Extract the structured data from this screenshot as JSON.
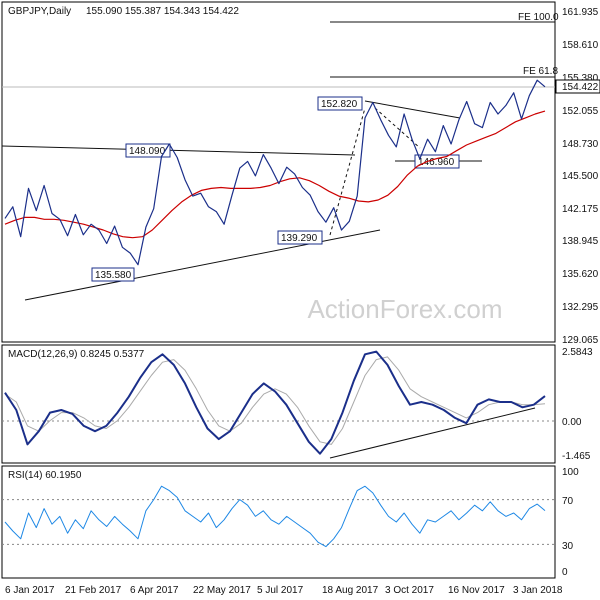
{
  "header": {
    "symbol": "GBPJPY,Daily",
    "ohlc": "155.090 155.387 154.343 154.422"
  },
  "watermark": "ActionForex.com",
  "chart_data": [
    {
      "type": "candlestick",
      "title": "GBPJPY,Daily 155.090 155.387 154.343 154.422",
      "ylim": [
        128.0,
        163.2
      ],
      "y_ticks": [
        "161.935",
        "158.610",
        "155.380",
        "154.422",
        "152.055",
        "148.730",
        "145.500",
        "142.175",
        "138.945",
        "135.620",
        "132.295",
        "129.065"
      ],
      "last_price": 154.422,
      "last_price_label": "154.422",
      "series": [
        {
          "name": "price",
          "color": "#1b2f8a",
          "y": [
            140.8,
            142.0,
            138.9,
            143.9,
            141.6,
            144.2,
            141.3,
            140.7,
            139.0,
            141.2,
            139.1,
            140.2,
            139.6,
            138.2,
            140.0,
            137.8,
            137.2,
            136.0,
            139.9,
            141.8,
            147.2,
            148.5,
            147.1,
            144.8,
            143.1,
            143.4,
            142.0,
            141.5,
            140.2,
            143.2,
            146.0,
            146.7,
            145.2,
            147.4,
            146.0,
            144.4,
            146.1,
            145.4,
            144.0,
            143.2,
            141.5,
            140.4,
            141.9,
            139.6,
            140.5,
            143.1,
            151.2,
            152.8,
            151.0,
            149.4,
            148.2,
            151.6,
            149.0,
            146.96,
            149.0,
            147.7,
            150.4,
            148.5,
            151.0,
            152.9,
            150.6,
            150.2,
            152.8,
            151.6,
            152.5,
            153.8,
            151.1,
            153.5,
            155.1,
            154.422
          ]
        },
        {
          "name": "ma",
          "color": "#cc0000",
          "y": [
            140.2,
            140.6,
            140.9,
            140.9,
            140.7,
            140.7,
            140.6,
            140.4,
            140.2,
            139.9,
            139.6,
            139.2,
            138.9,
            138.8,
            138.9,
            139.6,
            140.6,
            141.6,
            142.5,
            143.2,
            143.7,
            143.9,
            144.0,
            143.9,
            143.9,
            143.9,
            144.0,
            144.2,
            144.6,
            144.9,
            145.0,
            144.7,
            144.2,
            143.6,
            143.1,
            142.9,
            142.6,
            142.5,
            142.7,
            143.2,
            144.1,
            145.3,
            146.2,
            146.7,
            147.0,
            147.2,
            147.8,
            148.4,
            148.8,
            149.2,
            149.6,
            150.2,
            150.8,
            151.2,
            151.6,
            151.9
          ]
        }
      ],
      "annotations": [
        "135.580",
        "148.090",
        "139.290",
        "152.820",
        "146.960",
        "FE 61.8",
        "FE 100.0"
      ],
      "x_tick_labels": [
        "6 Jan 2017",
        "21 Feb 2017",
        "6 Apr 2017",
        "22 May 2017",
        "5 Jul 2017",
        "18 Aug 2017",
        "3 Oct 2017",
        "16 Nov 2017",
        "3 Jan 2018"
      ]
    },
    {
      "type": "line",
      "title": "MACD(12,26,9) 0.8245 0.5377",
      "ylim": [
        -1.7,
        2.75
      ],
      "y_ticks": [
        "2.5843",
        "0.00",
        "-1.465"
      ],
      "series": [
        {
          "name": "MACD",
          "color": "#1b2f8a",
          "y": [
            0.95,
            0.3,
            -1.0,
            -0.5,
            0.2,
            0.3,
            0.15,
            -0.3,
            -0.5,
            -0.3,
            0.2,
            0.8,
            1.5,
            2.1,
            2.4,
            2.0,
            1.3,
            0.4,
            -0.4,
            -0.8,
            -0.5,
            0.2,
            0.9,
            1.3,
            1.0,
            0.5,
            -0.2,
            -0.9,
            -1.35,
            -0.8,
            0.2,
            1.4,
            2.4,
            2.5,
            2.0,
            1.2,
            0.5,
            0.6,
            0.5,
            0.3,
            0.0,
            -0.2,
            0.5,
            0.7,
            0.6,
            0.6,
            0.4,
            0.5,
            0.8245
          ]
        },
        {
          "name": "Signal",
          "color": "#aaaaaa",
          "y": [
            0.9,
            0.6,
            -0.3,
            -0.5,
            -0.1,
            0.2,
            0.2,
            0.0,
            -0.3,
            -0.4,
            -0.1,
            0.4,
            1.0,
            1.6,
            2.1,
            2.2,
            1.8,
            1.1,
            0.3,
            -0.3,
            -0.5,
            -0.2,
            0.4,
            0.9,
            1.1,
            0.9,
            0.4,
            -0.3,
            -0.9,
            -1.0,
            -0.4,
            0.6,
            1.6,
            2.2,
            2.3,
            1.8,
            1.1,
            0.8,
            0.6,
            0.4,
            0.2,
            0.0,
            0.2,
            0.5,
            0.6,
            0.6,
            0.5,
            0.5,
            0.5377
          ]
        }
      ]
    },
    {
      "type": "line",
      "title": "RSI(14) 60.1950",
      "ylim": [
        0,
        100
      ],
      "y_ticks": [
        "100",
        "70",
        "30",
        "0"
      ],
      "levels": [
        70,
        30
      ],
      "series": [
        {
          "name": "RSI",
          "color": "#1e88e5",
          "y": [
            50,
            42,
            35,
            58,
            45,
            62,
            48,
            55,
            40,
            52,
            44,
            60,
            52,
            46,
            55,
            48,
            42,
            35,
            60,
            70,
            82,
            78,
            72,
            60,
            55,
            50,
            58,
            45,
            52,
            62,
            70,
            65,
            55,
            60,
            52,
            48,
            55,
            50,
            45,
            40,
            32,
            28,
            35,
            45,
            62,
            78,
            82,
            76,
            65,
            55,
            50,
            58,
            48,
            40,
            52,
            50,
            55,
            60,
            52,
            58,
            65,
            60,
            68,
            60,
            55,
            58,
            52,
            62,
            66,
            60.195
          ]
        }
      ]
    }
  ]
}
